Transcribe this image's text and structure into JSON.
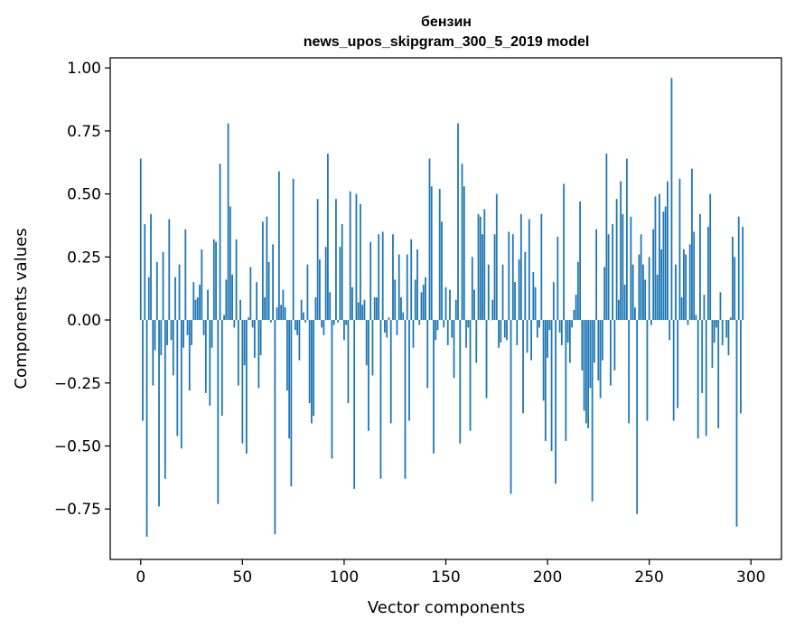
{
  "chart_data": {
    "type": "bar",
    "title": "бензин",
    "subtitle": "news_upos_skipgram_300_5_2019 model",
    "xlabel": "Vector components",
    "ylabel": "Components values",
    "xlim": [
      -15,
      315
    ],
    "ylim": [
      -0.95,
      1.04
    ],
    "xticks": [
      0,
      50,
      100,
      150,
      200,
      250,
      300
    ],
    "yticks": [
      -0.75,
      -0.5,
      -0.25,
      0.0,
      0.25,
      0.5,
      0.75,
      1.0
    ],
    "ytick_labels": [
      "−0.75",
      "−0.50",
      "−0.25",
      "0.00",
      "0.25",
      "0.50",
      "0.75",
      "1.00"
    ],
    "bar_color": "#1f77b4",
    "grid": false,
    "legend": "none",
    "values": [
      0.64,
      -0.4,
      0.38,
      -0.86,
      0.17,
      0.42,
      -0.26,
      -0.12,
      0.23,
      -0.74,
      -0.14,
      0.27,
      -0.63,
      -0.1,
      0.4,
      -0.08,
      -0.22,
      0.17,
      -0.46,
      0.22,
      -0.51,
      -0.11,
      0.36,
      -0.06,
      -0.28,
      -0.1,
      0.15,
      0.08,
      0.09,
      0.14,
      0.28,
      -0.06,
      -0.29,
      0.12,
      -0.34,
      -0.11,
      0.32,
      0.31,
      -0.73,
      0.62,
      -0.38,
      0.02,
      0.16,
      0.78,
      0.45,
      0.18,
      -0.03,
      0.32,
      -0.26,
      0.08,
      -0.49,
      -0.18,
      -0.53,
      0.01,
      0.21,
      -0.03,
      -0.15,
      0.15,
      -0.27,
      -0.14,
      0.39,
      0.09,
      0.41,
      0.23,
      -0.01,
      0.3,
      -0.85,
      0.05,
      0.59,
      0.06,
      0.12,
      0.05,
      -0.28,
      -0.47,
      -0.66,
      0.56,
      -0.04,
      -0.06,
      -0.16,
      0.08,
      0.03,
      -0.01,
      0.22,
      -0.33,
      -0.41,
      -0.38,
      0.09,
      0.48,
      0.24,
      -0.03,
      -0.06,
      0.29,
      0.66,
      0.11,
      -0.55,
      -0.02,
      0.48,
      -0.01,
      0.29,
      0.38,
      -0.08,
      -0.02,
      -0.33,
      0.51,
      0.13,
      -0.67,
      0.5,
      0.07,
      0.46,
      0.06,
      0.08,
      -0.18,
      -0.44,
      0.31,
      -0.22,
      0.09,
      0.09,
      0.34,
      -0.63,
      0.35,
      -0.05,
      -0.07,
      0.01,
      -0.41,
      0.34,
      0.16,
      -0.06,
      0.26,
      0.09,
      0.03,
      -0.63,
      0.26,
      -0.4,
      0.32,
      -0.11,
      0.16,
      0.28,
      -0.02,
      0.11,
      0.14,
      0.17,
      -0.27,
      0.64,
      0.53,
      -0.53,
      -0.08,
      -0.04,
      0.52,
      0.39,
      -0.03,
      0.13,
      -0.1,
      0.12,
      -0.07,
      -0.23,
      0.08,
      0.78,
      -0.49,
      0.62,
      0.53,
      -0.11,
      -0.03,
      -0.44,
      0.25,
      0.12,
      -0.17,
      0.42,
      0.41,
      0.34,
      0.44,
      -0.31,
      0.22,
      0.0,
      0.08,
      0.34,
      0.5,
      -0.11,
      -0.09,
      0.22,
      -0.07,
      -0.08,
      0.35,
      -0.69,
      0.34,
      0.15,
      -0.1,
      0.24,
      0.42,
      -0.37,
      0.27,
      -0.13,
      0.4,
      -0.16,
      0.19,
      0.13,
      -0.07,
      -0.03,
      0.42,
      -0.32,
      -0.48,
      -0.15,
      -0.04,
      -0.52,
      0.15,
      -0.65,
      0.33,
      -0.05,
      -0.1,
      0.54,
      -0.48,
      -0.09,
      -0.17,
      -0.03,
      0.04,
      0.1,
      0.23,
      0.47,
      -0.2,
      -0.36,
      -0.41,
      -0.43,
      -0.27,
      -0.72,
      -0.17,
      0.36,
      -0.24,
      -0.31,
      -0.16,
      0.21,
      0.66,
      0.34,
      -0.26,
      0.38,
      -0.2,
      0.48,
      0.08,
      0.55,
      0.42,
      0.14,
      0.64,
      -0.41,
      0.41,
      0.22,
      0.05,
      -0.77,
      0.26,
      0.34,
      0.22,
      0.16,
      -0.4,
      0.25,
      -0.02,
      0.36,
      0.49,
      0.18,
      0.5,
      0.28,
      0.43,
      0.45,
      0.55,
      -0.08,
      0.96,
      -0.4,
      0.22,
      -0.35,
      0.56,
      0.09,
      0.28,
      0.26,
      -0.02,
      0.3,
      0.6,
      0.35,
      0.02,
      -0.47,
      0.42,
      -0.29,
      0.1,
      -0.46,
      0.37,
      0.5,
      -0.19,
      -0.09,
      -0.03,
      -0.43,
      0.11,
      -0.1,
      0.0,
      -0.07,
      -0.14,
      0.01,
      0.33,
      0.25,
      -0.82,
      0.41,
      -0.37,
      0.37
    ]
  }
}
